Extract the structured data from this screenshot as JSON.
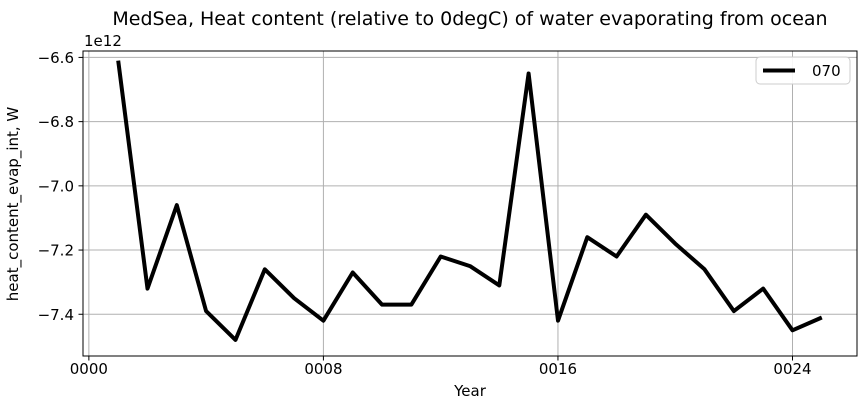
{
  "chart_data": {
    "type": "line",
    "title": "MedSea, Heat content (relative to 0degC) of water evaporating from ocean",
    "xlabel": "Year",
    "ylabel": "heat_content_evap_int, W",
    "y_offset_multiplier": "1e12",
    "values_unit": "1e12 W",
    "x": [
      1,
      2,
      3,
      4,
      5,
      6,
      7,
      8,
      9,
      10,
      11,
      12,
      13,
      14,
      15,
      16,
      17,
      18,
      19,
      20,
      21,
      22,
      23,
      24,
      25
    ],
    "series": [
      {
        "name": "070",
        "values": [
          -6.61,
          -7.32,
          -7.06,
          -7.39,
          -7.48,
          -7.26,
          -7.35,
          -7.42,
          -7.27,
          -7.37,
          -7.37,
          -7.22,
          -7.25,
          -7.31,
          -6.65,
          -7.42,
          -7.16,
          -7.22,
          -7.09,
          -7.18,
          -7.26,
          -7.39,
          -7.32,
          -7.45,
          -7.41
        ]
      }
    ],
    "xlim": [
      -0.2,
      26.2
    ],
    "ylim": [
      -7.53,
      -6.58
    ],
    "xticks": {
      "values": [
        0,
        8,
        16,
        24
      ],
      "labels": [
        "0000",
        "0008",
        "0016",
        "0024"
      ]
    },
    "yticks": {
      "values": [
        -6.6,
        -6.8,
        -7.0,
        -7.2,
        -7.4
      ],
      "labels": [
        "−6.6",
        "−6.8",
        "−7.0",
        "−7.2",
        "−7.4"
      ]
    },
    "grid": true,
    "legend_position": "upper right",
    "colors": {
      "line": "#000000",
      "grid": "#b0b0b0",
      "spine": "#000000",
      "background": "#ffffff",
      "legend_border": "#cccccc",
      "text": "#000000"
    },
    "line_width": 4
  }
}
